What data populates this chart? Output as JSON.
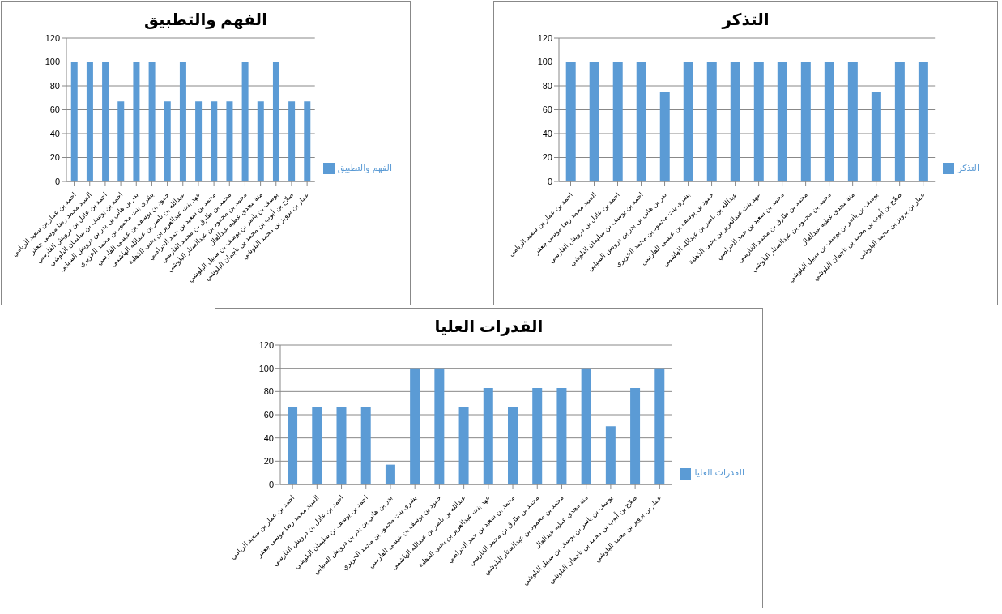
{
  "chart_data": [
    {
      "type": "bar",
      "title": "الفهم والتطبيق",
      "categories": [
        "احمد بن عمار بن سعيد الريامي",
        "السيد محمد رضا موسى جعفر",
        "احمد بن عادل بن درويش الفارسي",
        "احمد بن يوسف بن سليمان البلوشي",
        "بدر بن هاني بن بدر بن درويش السيابي",
        "بشرى بنت محمود بن محمد الخزيري",
        "حمود بن يوسف بن عيسى الفارسي",
        "عبدالله بن ناصر بن عبدالله الهاشمي",
        "عهد بنت عبدالعزيز بن يحيى الذهلية",
        "محمد بن سعيد بن حمد الحراصي",
        "محمد بن طارق بن محمد الفارسي",
        "محمد بن محمود بن عبدالستار البلوشي",
        "منة مجدي عطيه عبدالعال",
        "يوسف بن ياسر بن يوسف بن سبيل البلوشي",
        "صلاح بن أيوب بن محمد بن ناجمان البلوشي",
        "عمار بن برويز بن محمد البلوشي"
      ],
      "series": [
        {
          "name": "الفهم والتطبيق",
          "color": "#5b9bd5",
          "values": [
            100,
            100,
            100,
            67,
            100,
            100,
            67,
            100,
            67,
            67,
            67,
            100,
            67,
            100,
            67,
            67
          ]
        }
      ],
      "ylim": [
        0,
        120
      ],
      "yticks": [
        0,
        20,
        40,
        60,
        80,
        100,
        120
      ],
      "grid": "y",
      "legend": "right"
    },
    {
      "type": "bar",
      "title": "التذكر",
      "categories": [
        "احمد بن عمار بن سعيد الريامي",
        "السيد محمد رضا موسى جعفر",
        "احمد بن عادل بن درويش الفارسي",
        "احمد بن يوسف بن سليمان البلوشي",
        "بدر بن هاني بن بدر بن درويش السيابي",
        "بشرى بنت محمود بن محمد الخزيري",
        "حمود بن يوسف بن عيسى الفارسي",
        "عبدالله بن ناصر بن عبدالله الهاشمي",
        "عهد بنت عبدالعزيز بن يحيى الذهلية",
        "محمد بن سعيد بن حمد الحراصي",
        "محمد بن طارق بن محمد الفارسي",
        "محمد بن محمود بن عبدالستار البلوشي",
        "منة مجدي عطيه عبدالعال",
        "يوسف بن ياسر بن يوسف بن سبيل البلوشي",
        "صلاح بن أيوب بن محمد بن ناجمان البلوشي",
        "عمار بن برويز بن محمد البلوشي"
      ],
      "series": [
        {
          "name": "التذكر",
          "color": "#5b9bd5",
          "values": [
            100,
            100,
            100,
            100,
            75,
            100,
            100,
            100,
            100,
            100,
            100,
            100,
            100,
            75,
            100,
            100
          ]
        }
      ],
      "ylim": [
        0,
        120
      ],
      "yticks": [
        0,
        20,
        40,
        60,
        80,
        100,
        120
      ],
      "grid": "y",
      "legend": "right"
    },
    {
      "type": "bar",
      "title": "القدرات العليا",
      "categories": [
        "احمد بن عمار بن سعيد الريامي",
        "السيد محمد رضا موسى جعفر",
        "احمد بن عادل بن درويش الفارسي",
        "احمد بن يوسف بن سليمان البلوشي",
        "بدر بن هاني بن بدر بن درويش السيابي",
        "بشرى بنت محمود بن محمد الخزيري",
        "حمود بن يوسف بن عيسى الفارسي",
        "عبدالله بن ناصر بن عبدالله الهاشمي",
        "عهد بنت عبدالعزيز بن يحيى الذهلية",
        "محمد بن سعيد بن حمد الحراصي",
        "محمد بن طارق بن محمد الفارسي",
        "محمد بن محمود بن عبدالستار البلوشي",
        "منة مجدي عطيه عبدالعال",
        "يوسف بن ياسر بن يوسف بن سبيل البلوشي",
        "صلاح بن أيوب بن محمد بن ناجمان البلوشي",
        "عمار بن برويز بن محمد البلوشي"
      ],
      "series": [
        {
          "name": "القدرات العليا",
          "color": "#5b9bd5",
          "values": [
            67,
            67,
            67,
            67,
            17,
            100,
            100,
            67,
            83,
            67,
            83,
            83,
            100,
            50,
            83,
            100
          ]
        }
      ],
      "ylim": [
        0,
        120
      ],
      "yticks": [
        0,
        20,
        40,
        60,
        80,
        100,
        120
      ],
      "grid": "y",
      "legend": "right"
    }
  ]
}
